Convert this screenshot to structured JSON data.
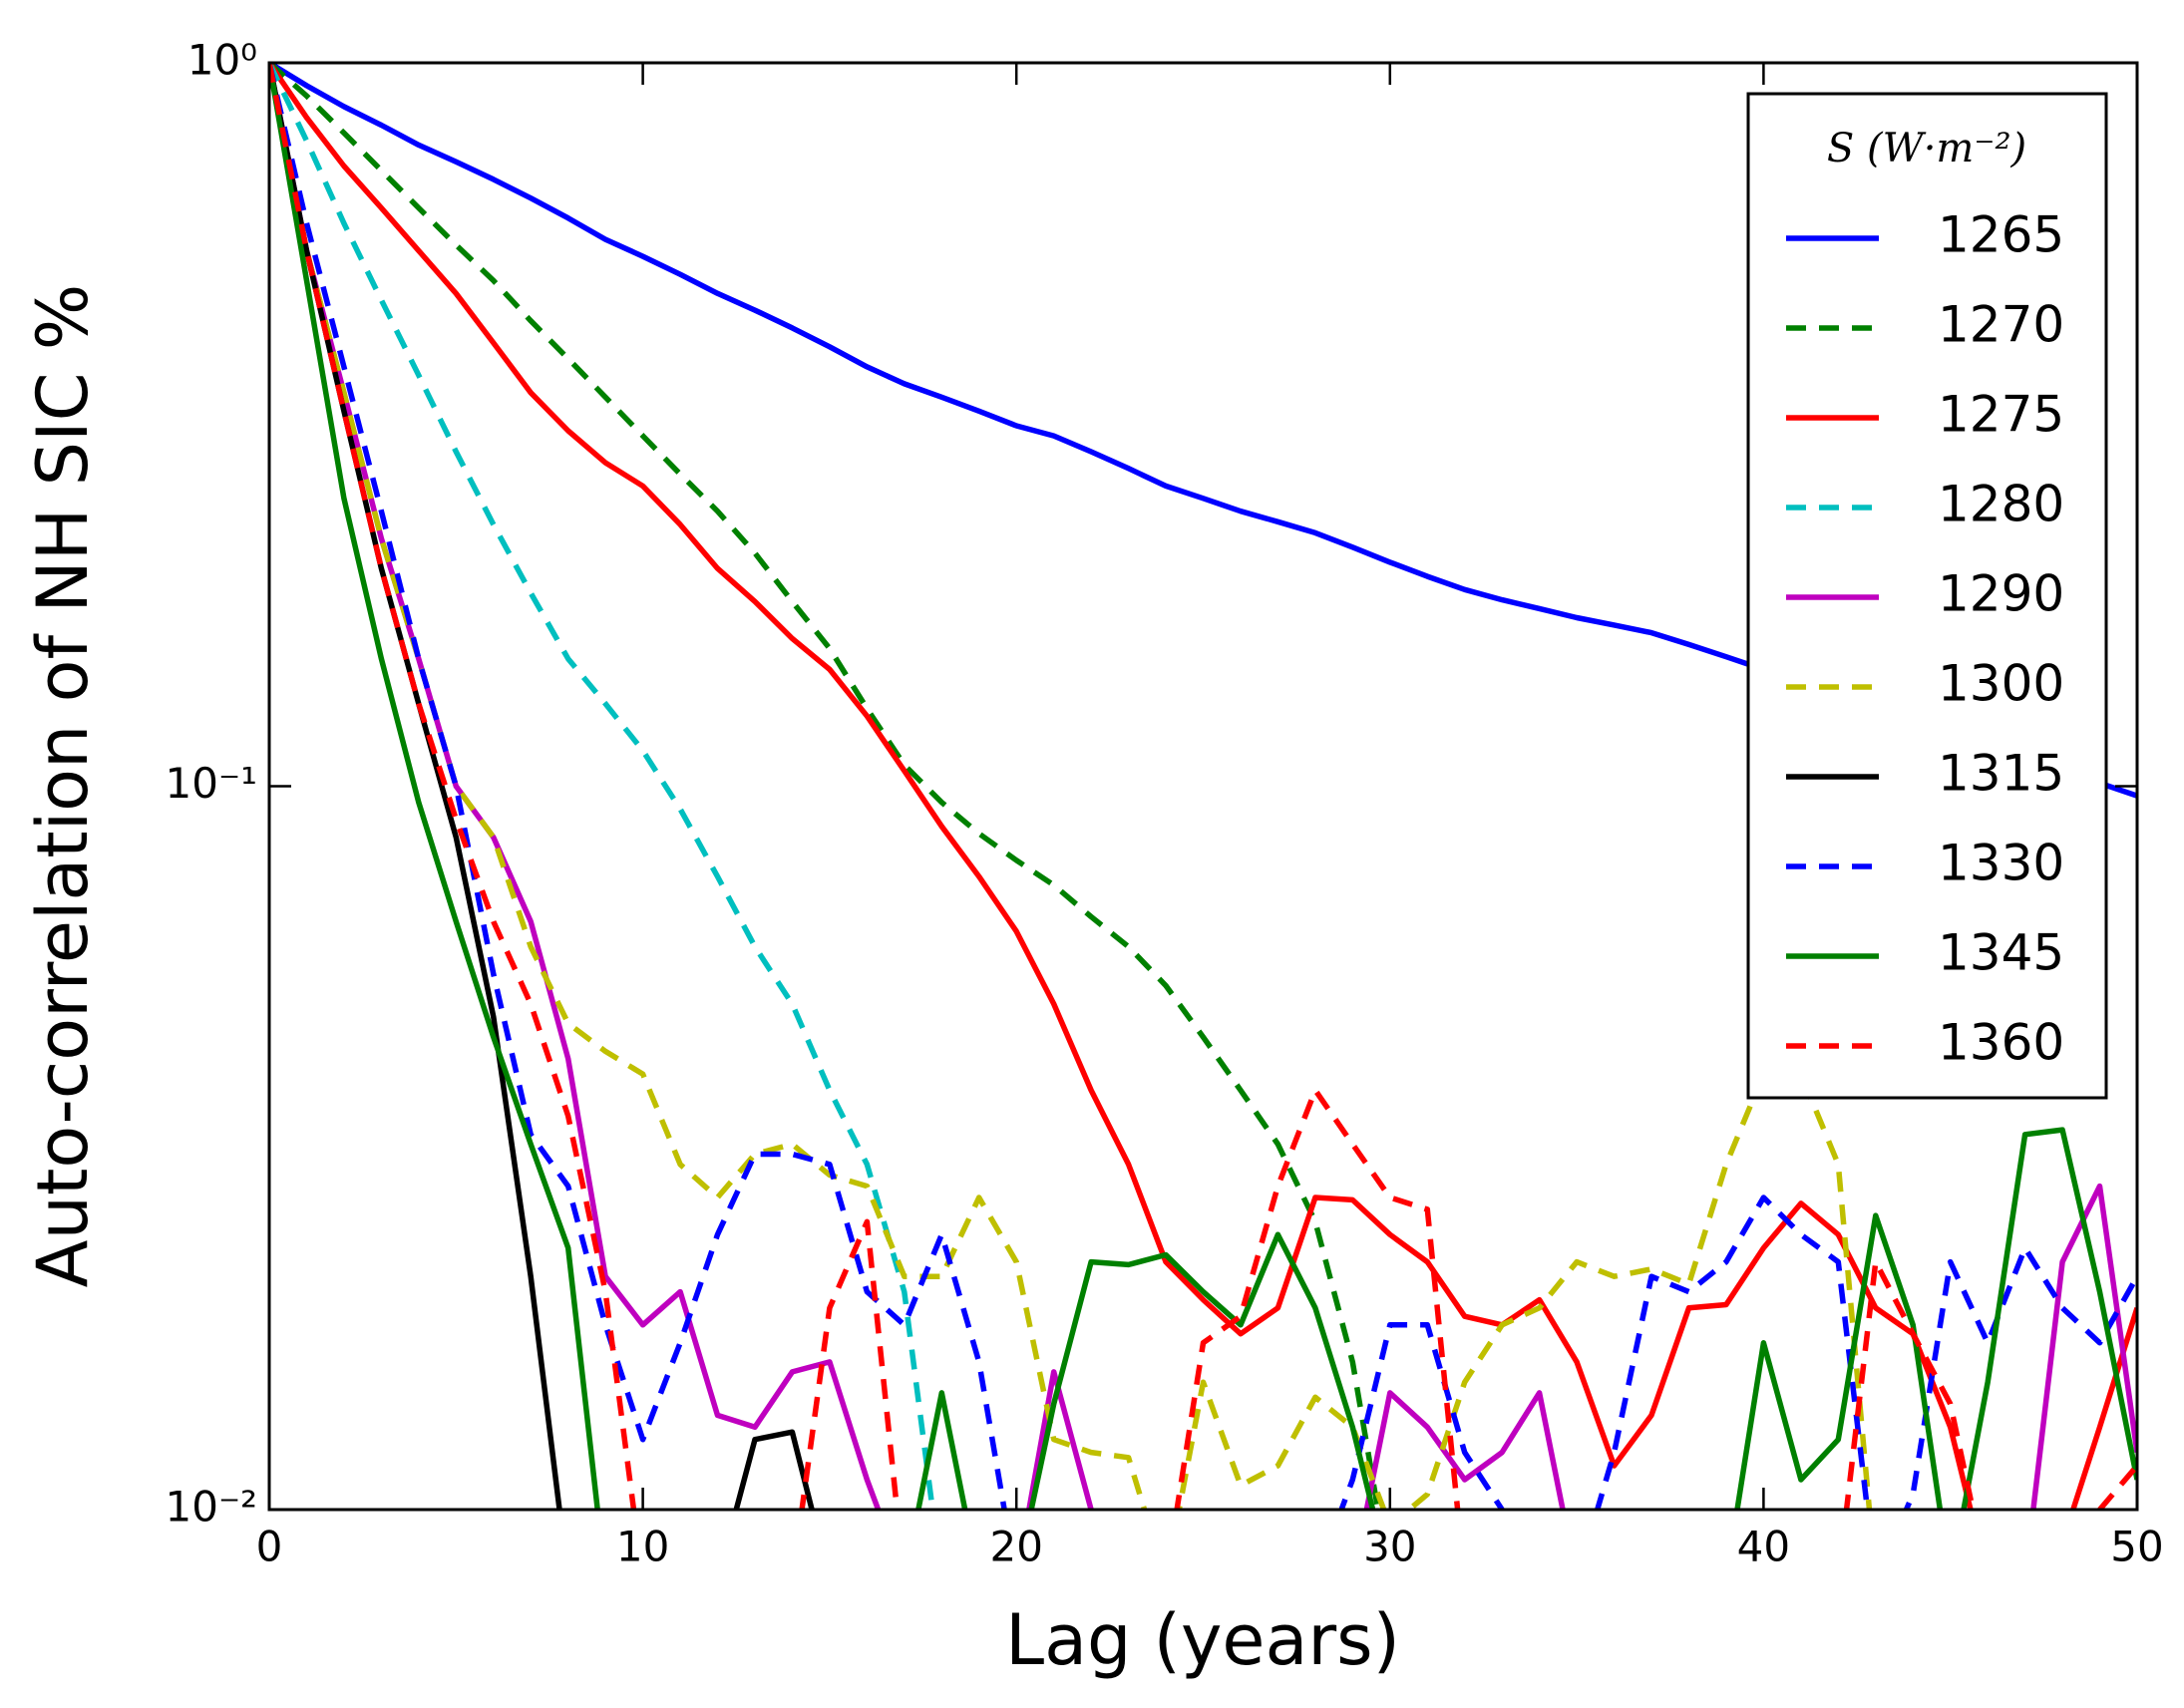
{
  "chart_data": {
    "type": "line",
    "xlabel": "Lag (years)",
    "ylabel": "Auto-correlation of NH SIC %",
    "log_y": true,
    "legend": "upper right",
    "legend_title": "S (W·m⁻²)",
    "xlim": [
      0,
      50
    ],
    "xticks": [
      0,
      10,
      20,
      30,
      40,
      50
    ],
    "ylim": [
      0.01,
      1
    ],
    "yticks": [
      {
        "value": 0.01,
        "label": "10⁻²"
      },
      {
        "value": 0.1,
        "label": "10⁻¹"
      },
      {
        "value": 1,
        "label": "10⁰"
      }
    ],
    "x": [
      0,
      1,
      2,
      3,
      4,
      5,
      6,
      7,
      8,
      9,
      10,
      11,
      12,
      13,
      14,
      15,
      16,
      17,
      18,
      19,
      20,
      21,
      22,
      23,
      24,
      25,
      26,
      27,
      28,
      29,
      30,
      31,
      32,
      33,
      34,
      35,
      36,
      37,
      38,
      39,
      40,
      41,
      42,
      43,
      44,
      45,
      46,
      47,
      48,
      49,
      50
    ],
    "series": [
      {
        "name": "1265",
        "color": "#0000ff",
        "linestyle": "solid",
        "values": [
          1.0,
          0.93,
          0.87,
          0.82,
          0.77,
          0.73,
          0.69,
          0.65,
          0.61,
          0.57,
          0.54,
          0.51,
          0.48,
          0.455,
          0.43,
          0.405,
          0.38,
          0.36,
          0.345,
          0.33,
          0.315,
          0.305,
          0.29,
          0.275,
          0.26,
          0.25,
          0.24,
          0.232,
          0.224,
          0.214,
          0.204,
          0.195,
          0.187,
          0.181,
          0.176,
          0.171,
          0.167,
          0.163,
          0.157,
          0.151,
          0.145,
          0.14,
          0.135,
          0.13,
          0.125,
          0.12,
          0.115,
          0.11,
          0.106,
          0.101,
          0.097
        ]
      },
      {
        "name": "1270",
        "color": "#008000",
        "linestyle": "dashed",
        "values": [
          1,
          0.9,
          0.8,
          0.71,
          0.63,
          0.56,
          0.5,
          0.44,
          0.39,
          0.345,
          0.305,
          0.27,
          0.24,
          0.21,
          0.18,
          0.155,
          0.128,
          0.107,
          0.095,
          0.086,
          0.079,
          0.073,
          0.066,
          0.06,
          0.053,
          0.045,
          0.038,
          0.032,
          0.025,
          0.016,
          0.008,
          null,
          null,
          null,
          null,
          null,
          null,
          null,
          null,
          null,
          null,
          null,
          null,
          null,
          null,
          null,
          null,
          null,
          null,
          null,
          null
        ]
      },
      {
        "name": "1275",
        "color": "#ff0000",
        "linestyle": "solid",
        "values": [
          1,
          0.84,
          0.72,
          0.63,
          0.55,
          0.48,
          0.41,
          0.35,
          0.31,
          0.28,
          0.26,
          0.23,
          0.2,
          0.18,
          0.16,
          0.145,
          0.125,
          0.105,
          0.088,
          0.075,
          0.063,
          0.05,
          0.038,
          0.03,
          0.022,
          0.0195,
          0.0175,
          0.019,
          0.027,
          0.0268,
          0.024,
          0.022,
          0.0185,
          0.018,
          0.0195,
          0.016,
          0.0115,
          0.0135,
          0.019,
          0.0192,
          0.023,
          0.0265,
          0.024,
          0.019,
          0.0175,
          0.013,
          0.008,
          null,
          0.009,
          0.013,
          0.019
        ]
      },
      {
        "name": "1280",
        "color": "#00bfbf",
        "linestyle": "dashed",
        "values": [
          1,
          0.78,
          0.6,
          0.47,
          0.37,
          0.29,
          0.23,
          0.185,
          0.15,
          0.13,
          0.112,
          0.093,
          0.075,
          0.06,
          0.05,
          0.038,
          0.03,
          0.02,
          0.008,
          null,
          null,
          null,
          null,
          null,
          null,
          null,
          null,
          null,
          null,
          null,
          null,
          null,
          null,
          null,
          null,
          null,
          null,
          null,
          null,
          null,
          null,
          null,
          null,
          null,
          null,
          null,
          null,
          null,
          null,
          null,
          null
        ]
      },
      {
        "name": "1290",
        "color": "#bf00bf",
        "linestyle": "solid",
        "values": [
          1,
          0.55,
          0.35,
          0.22,
          0.15,
          0.1,
          0.085,
          0.065,
          0.042,
          0.021,
          0.018,
          0.02,
          0.0135,
          0.013,
          0.0155,
          0.016,
          0.011,
          0.008,
          null,
          null,
          0.008,
          0.0155,
          0.01,
          0.008,
          null,
          null,
          null,
          null,
          null,
          0.008,
          0.0145,
          0.013,
          0.011,
          0.012,
          0.0145,
          0.008,
          null,
          null,
          null,
          null,
          null,
          null,
          null,
          null,
          null,
          null,
          null,
          0.008,
          0.022,
          0.028,
          0.012
        ]
      },
      {
        "name": "1300",
        "color": "#bfbf00",
        "linestyle": "dashed",
        "values": [
          1,
          0.55,
          0.35,
          0.22,
          0.15,
          0.1,
          0.085,
          0.06,
          0.047,
          0.043,
          0.04,
          0.03,
          0.027,
          0.031,
          0.032,
          0.029,
          0.028,
          0.021,
          0.021,
          0.027,
          0.022,
          0.0125,
          0.012,
          0.0118,
          0.008,
          0.015,
          0.0108,
          0.0115,
          0.0143,
          0.013,
          0.0095,
          0.0105,
          0.015,
          0.018,
          0.019,
          0.022,
          0.021,
          0.0215,
          0.0205,
          0.03,
          0.04,
          0.04,
          0.03,
          0.008,
          null,
          null,
          null,
          null,
          null,
          null,
          null
        ]
      },
      {
        "name": "1315",
        "color": "#000000",
        "linestyle": "solid",
        "values": [
          1,
          0.55,
          0.33,
          0.2,
          0.13,
          0.085,
          0.048,
          0.021,
          0.008,
          null,
          null,
          null,
          0.008,
          0.0125,
          0.0128,
          0.008,
          null,
          null,
          null,
          null,
          null,
          null,
          null,
          null,
          null,
          null,
          null,
          null,
          null,
          null,
          null,
          null,
          null,
          null,
          null,
          null,
          null,
          null,
          null,
          null,
          null,
          null,
          null,
          null,
          null,
          null,
          null,
          null,
          null,
          null,
          null
        ]
      },
      {
        "name": "1330",
        "color": "#0000ff",
        "linestyle": "dashed",
        "values": [
          1,
          0.6,
          0.38,
          0.24,
          0.15,
          0.1,
          0.055,
          0.033,
          0.028,
          0.018,
          0.0125,
          0.017,
          0.024,
          0.031,
          0.031,
          0.03,
          0.02,
          0.018,
          0.024,
          0.016,
          0.008,
          null,
          null,
          null,
          null,
          null,
          null,
          null,
          0.008,
          0.011,
          0.018,
          0.018,
          0.012,
          0.01,
          0.008,
          0.008,
          0.012,
          0.021,
          0.02,
          0.022,
          0.027,
          0.024,
          0.022,
          0.008,
          0.0105,
          0.022,
          0.017,
          0.023,
          0.019,
          0.017,
          0.021
        ]
      },
      {
        "name": "1345",
        "color": "#008000",
        "linestyle": "solid",
        "values": [
          1,
          0.5,
          0.25,
          0.15,
          0.095,
          0.065,
          0.045,
          0.032,
          0.023,
          0.008,
          null,
          null,
          null,
          null,
          null,
          null,
          null,
          0.008,
          0.0145,
          0.008,
          0.008,
          0.014,
          0.022,
          0.0218,
          0.0225,
          0.02,
          0.018,
          0.024,
          0.019,
          0.013,
          0.008,
          null,
          null,
          null,
          null,
          null,
          null,
          null,
          null,
          0.008,
          0.017,
          0.011,
          0.0125,
          0.0255,
          0.018,
          0.008,
          0.015,
          0.033,
          0.0335,
          0.02,
          0.011
        ]
      },
      {
        "name": "1360",
        "color": "#ff0000",
        "linestyle": "dashed",
        "values": [
          1,
          0.55,
          0.33,
          0.2,
          0.13,
          0.09,
          0.065,
          0.05,
          0.035,
          0.02,
          0.008,
          null,
          null,
          null,
          0.008,
          0.019,
          0.025,
          0.008,
          null,
          null,
          null,
          null,
          null,
          null,
          0.008,
          0.017,
          0.0185,
          0.028,
          0.038,
          0.032,
          0.027,
          0.026,
          0.008,
          null,
          null,
          null,
          null,
          null,
          null,
          null,
          null,
          null,
          0.008,
          0.022,
          0.0175,
          0.014,
          0.008,
          null,
          null,
          0.01,
          0.0115
        ]
      }
    ]
  }
}
